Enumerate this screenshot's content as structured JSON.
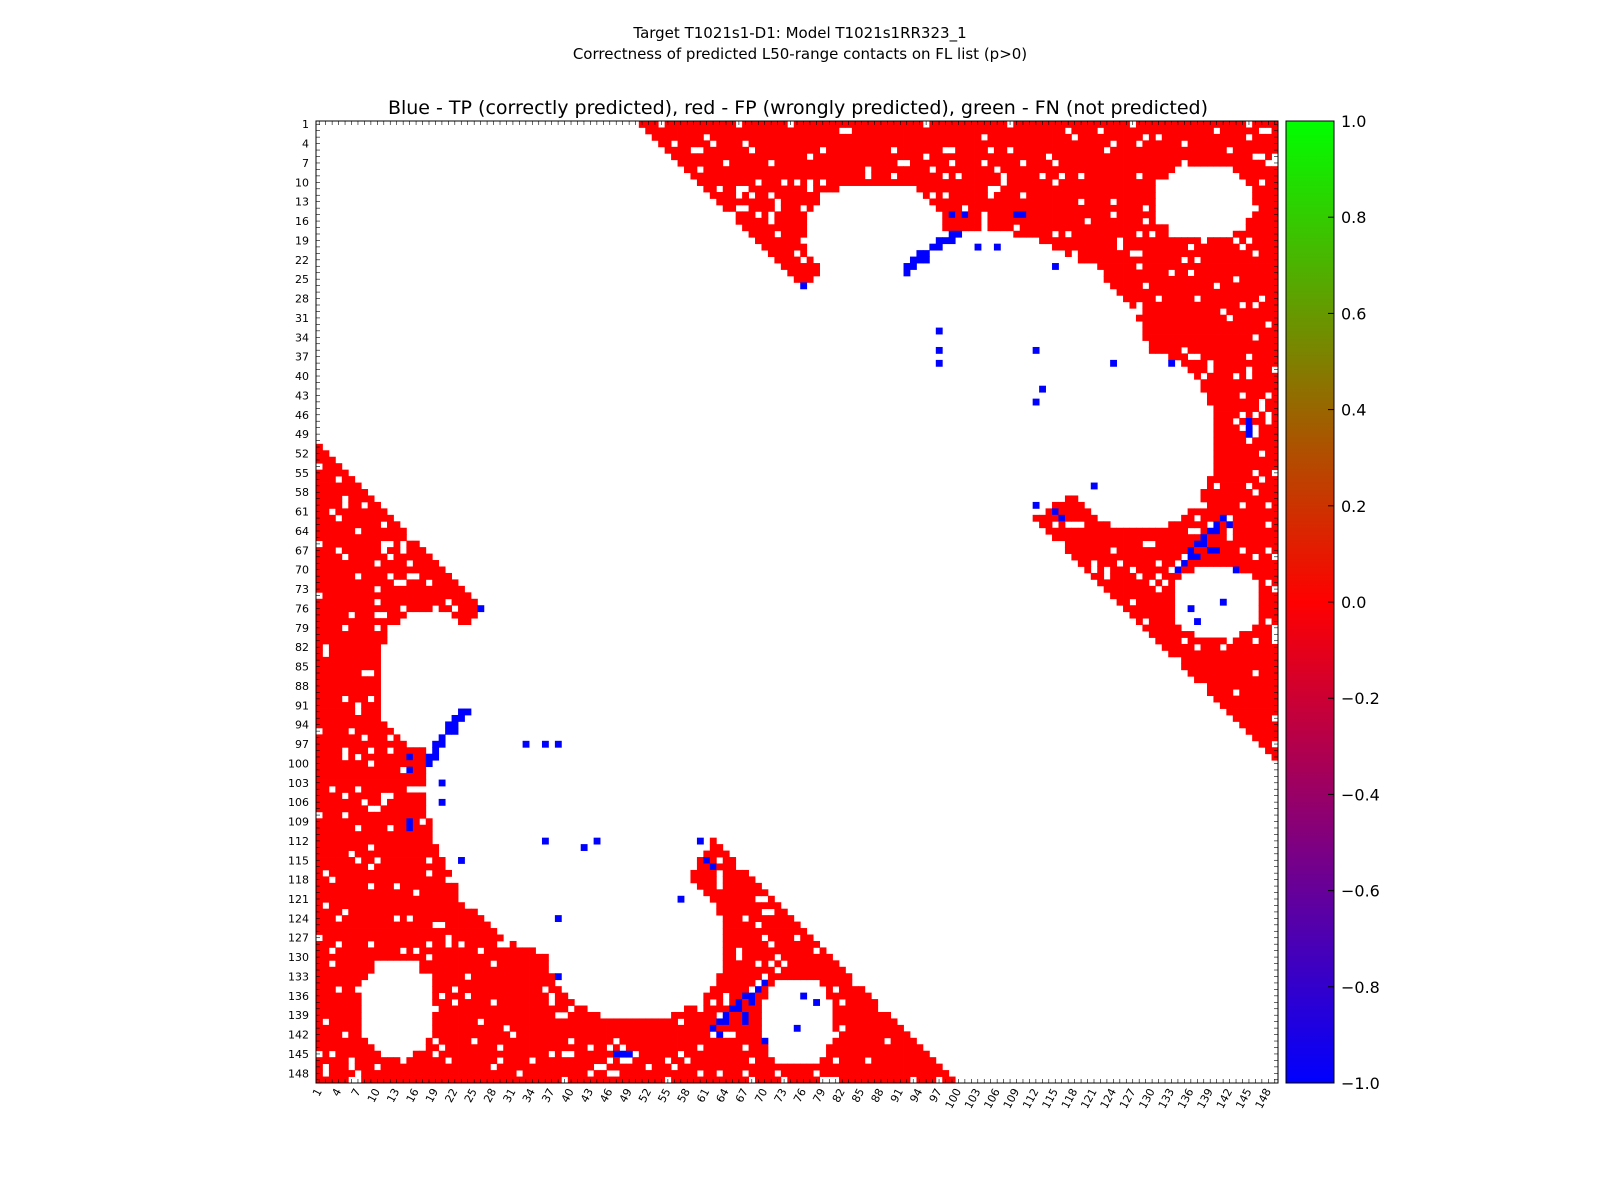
{
  "chart_data": {
    "type": "heatmap",
    "suptitle": [
      "Target T1021s1-D1: Model T1021s1RR323_1",
      "Correctness of predicted L50-range contacts on FL list (p>0)"
    ],
    "title": "Blue - TP (correctly predicted), red - FP (wrongly predicted), green - FN (not predicted)",
    "n_residues": 149,
    "y_ticks": [
      1,
      4,
      7,
      10,
      13,
      16,
      19,
      22,
      25,
      28,
      31,
      34,
      37,
      40,
      43,
      46,
      49,
      52,
      55,
      58,
      61,
      64,
      67,
      70,
      73,
      76,
      79,
      82,
      85,
      88,
      91,
      94,
      97,
      100,
      103,
      106,
      109,
      112,
      115,
      118,
      121,
      124,
      127,
      130,
      133,
      136,
      139,
      142,
      145,
      148
    ],
    "x_ticks": [
      1,
      4,
      7,
      10,
      13,
      16,
      19,
      22,
      25,
      28,
      31,
      34,
      37,
      40,
      43,
      46,
      49,
      52,
      55,
      58,
      61,
      64,
      67,
      70,
      73,
      76,
      79,
      82,
      85,
      88,
      91,
      94,
      97,
      100,
      103,
      106,
      109,
      112,
      115,
      118,
      121,
      124,
      127,
      130,
      133,
      136,
      139,
      142,
      145,
      148
    ],
    "colorbar": {
      "range": [
        -1.0,
        1.0
      ],
      "ticks": [
        "1.0",
        "0.8",
        "0.6",
        "0.4",
        "0.2",
        "0.0",
        "−0.2",
        "−0.4",
        "−0.6",
        "−0.8",
        "−1.0"
      ],
      "colors": [
        "#00ff00",
        "#ff0000",
        "#0000ff"
      ]
    },
    "legend": {
      "tp": "Blue",
      "fp": "red",
      "fn": "green"
    },
    "min_separation": 50,
    "fp_color": "#ff0000",
    "tp_color": "#0000ff",
    "fn_color": "#00ff00",
    "fp_white_blobs": [
      {
        "cx": 100,
        "cy": 40,
        "rx": 30,
        "ry": 23
      },
      {
        "cx": 87,
        "cy": 18,
        "rx": 11,
        "ry": 8
      },
      {
        "cx": 138,
        "cy": 13,
        "rx": 8,
        "ry": 6
      },
      {
        "cx": 108,
        "cy": 28,
        "rx": 8,
        "ry": 8
      },
      {
        "cx": 140,
        "cy": 75,
        "rx": 7,
        "ry": 6
      },
      {
        "cx": 128,
        "cy": 50,
        "rx": 12,
        "ry": 14
      }
    ],
    "tp_contacts": [
      [
        21,
        94
      ],
      [
        21,
        95
      ],
      [
        22,
        93
      ],
      [
        22,
        94
      ],
      [
        23,
        92
      ],
      [
        23,
        93
      ],
      [
        24,
        92
      ],
      [
        20,
        96
      ],
      [
        20,
        97
      ],
      [
        19,
        97
      ],
      [
        19,
        98
      ],
      [
        18,
        99
      ],
      [
        18,
        100
      ],
      [
        19,
        99
      ],
      [
        22,
        95
      ],
      [
        26,
        76
      ],
      [
        15,
        99
      ],
      [
        15,
        101
      ],
      [
        15,
        109
      ],
      [
        15,
        110
      ],
      [
        20,
        103
      ],
      [
        23,
        115
      ],
      [
        20,
        106
      ],
      [
        33,
        97
      ],
      [
        36,
        97
      ],
      [
        38,
        97
      ],
      [
        42,
        113
      ],
      [
        44,
        112
      ],
      [
        47,
        145
      ],
      [
        48,
        145
      ],
      [
        49,
        145
      ],
      [
        62,
        141
      ],
      [
        63,
        140
      ],
      [
        64,
        139
      ],
      [
        65,
        138
      ],
      [
        66,
        137
      ],
      [
        67,
        136
      ],
      [
        68,
        136
      ],
      [
        69,
        135
      ],
      [
        70,
        134
      ],
      [
        64,
        140
      ],
      [
        66,
        138
      ],
      [
        68,
        137
      ],
      [
        63,
        142
      ],
      [
        67,
        139
      ],
      [
        57,
        121
      ],
      [
        60,
        112
      ],
      [
        61,
        115
      ],
      [
        62,
        116
      ],
      [
        36,
        112
      ],
      [
        38,
        124
      ],
      [
        38,
        133
      ],
      [
        76,
        136
      ],
      [
        78,
        137
      ],
      [
        75,
        141
      ],
      [
        70,
        143
      ],
      [
        67,
        140
      ]
    ]
  }
}
